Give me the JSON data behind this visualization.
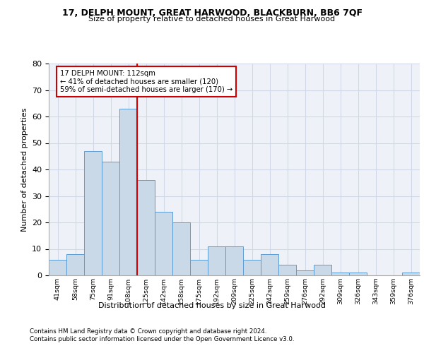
{
  "title1": "17, DELPH MOUNT, GREAT HARWOOD, BLACKBURN, BB6 7QF",
  "title2": "Size of property relative to detached houses in Great Harwood",
  "xlabel": "Distribution of detached houses by size in Great Harwood",
  "ylabel": "Number of detached properties",
  "categories": [
    "41sqm",
    "58sqm",
    "75sqm",
    "91sqm",
    "108sqm",
    "125sqm",
    "142sqm",
    "158sqm",
    "175sqm",
    "192sqm",
    "209sqm",
    "225sqm",
    "242sqm",
    "259sqm",
    "276sqm",
    "292sqm",
    "309sqm",
    "326sqm",
    "343sqm",
    "359sqm",
    "376sqm"
  ],
  "values": [
    6,
    8,
    47,
    43,
    63,
    36,
    24,
    20,
    6,
    11,
    11,
    6,
    8,
    4,
    2,
    4,
    1,
    1,
    0,
    0,
    1
  ],
  "bar_color": "#c9d9e8",
  "bar_edge_color": "#5b9bd5",
  "property_line_x": 4.5,
  "annotation_text": "17 DELPH MOUNT: 112sqm\n← 41% of detached houses are smaller (120)\n59% of semi-detached houses are larger (170) →",
  "annotation_box_color": "#ffffff",
  "annotation_box_edge": "#cc0000",
  "vline_color": "#cc0000",
  "ylim": [
    0,
    80
  ],
  "yticks": [
    0,
    10,
    20,
    30,
    40,
    50,
    60,
    70,
    80
  ],
  "grid_color": "#d0d8e8",
  "footer1": "Contains HM Land Registry data © Crown copyright and database right 2024.",
  "footer2": "Contains public sector information licensed under the Open Government Licence v3.0.",
  "bg_color": "#eef2f8"
}
